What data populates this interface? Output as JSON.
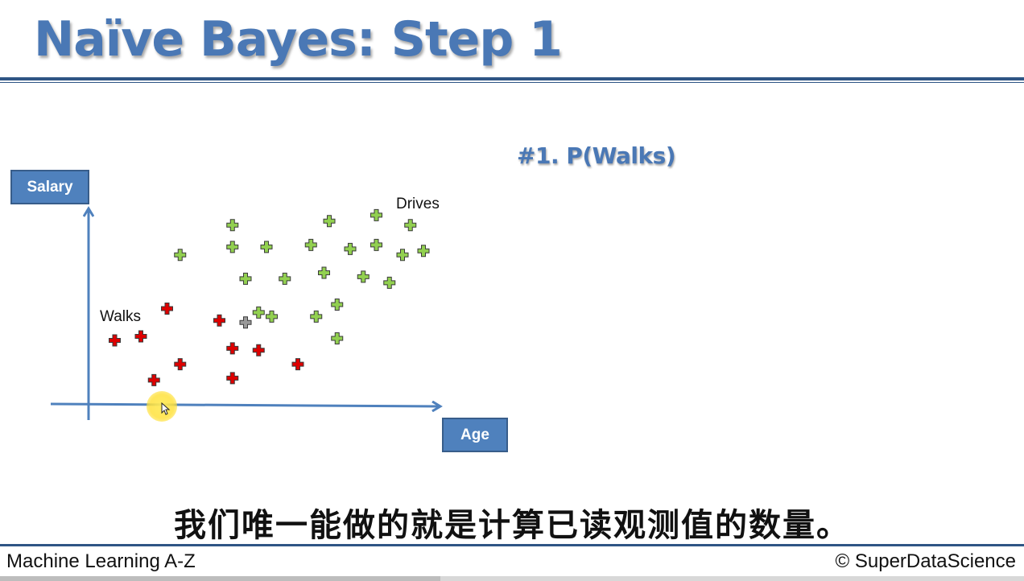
{
  "slide": {
    "title": "Naïve Bayes: Step 1",
    "step_heading": "#1. P(Walks)",
    "subtitle": "我们唯一能做的就是计算已读观测值的数量。"
  },
  "chart_data": {
    "type": "scatter",
    "xlabel": "Age",
    "ylabel": "Salary",
    "annotations": [
      "Walks",
      "Drives"
    ],
    "colors": {
      "walks": "#dd0000",
      "drives": "#92d050",
      "new_point": "#9a9a9a",
      "axis": "#4f81bd"
    },
    "series": [
      {
        "name": "Walks",
        "points": [
          [
            1.0,
            3.2
          ],
          [
            2.0,
            3.4
          ],
          [
            3.0,
            4.8
          ],
          [
            2.5,
            1.2
          ],
          [
            3.5,
            2.0
          ],
          [
            5.0,
            4.2
          ],
          [
            5.5,
            2.8
          ],
          [
            5.5,
            1.3
          ],
          [
            6.5,
            2.7
          ],
          [
            8.0,
            2.0
          ]
        ]
      },
      {
        "name": "Drives",
        "points": [
          [
            3.5,
            7.5
          ],
          [
            5.5,
            9.0
          ],
          [
            5.5,
            7.9
          ],
          [
            6.0,
            6.3
          ],
          [
            6.5,
            4.6
          ],
          [
            6.8,
            7.9
          ],
          [
            7.0,
            4.4
          ],
          [
            7.5,
            6.3
          ],
          [
            8.5,
            8.0
          ],
          [
            8.7,
            4.4
          ],
          [
            9.0,
            6.6
          ],
          [
            9.2,
            9.2
          ],
          [
            9.5,
            5.0
          ],
          [
            9.5,
            3.3
          ],
          [
            10.0,
            7.8
          ],
          [
            10.5,
            6.4
          ],
          [
            11.0,
            9.5
          ],
          [
            11.0,
            8.0
          ],
          [
            11.5,
            6.1
          ],
          [
            12.0,
            7.5
          ],
          [
            12.3,
            9.0
          ],
          [
            12.8,
            7.7
          ]
        ]
      },
      {
        "name": "",
        "points": [
          [
            6.0,
            4.1
          ]
        ]
      }
    ]
  },
  "footer": {
    "left": "Machine Learning A-Z",
    "right": "© SuperDataScience"
  },
  "video": {
    "progress": 0.43
  }
}
